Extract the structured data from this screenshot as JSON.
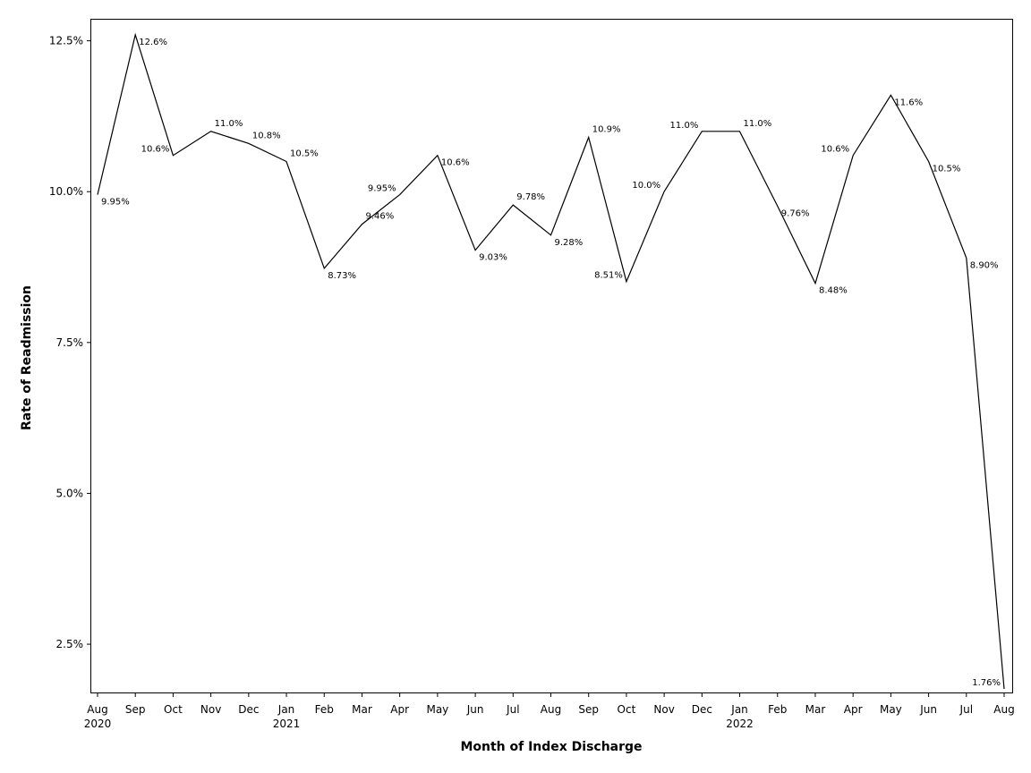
{
  "chart_data": {
    "type": "line",
    "xlabel": "Month of Index Discharge",
    "ylabel": "Rate of Readmission",
    "ylim": [
      1.7,
      12.85
    ],
    "yticks": [
      2.5,
      5.0,
      7.5,
      10.0,
      12.5
    ],
    "ytick_labels": [
      "2.5%",
      "5.0%",
      "7.5%",
      "10.0%",
      "12.5%"
    ],
    "grid": false,
    "categories": [
      {
        "month": "Aug",
        "year": "2020"
      },
      {
        "month": "Sep",
        "year": ""
      },
      {
        "month": "Oct",
        "year": ""
      },
      {
        "month": "Nov",
        "year": ""
      },
      {
        "month": "Dec",
        "year": ""
      },
      {
        "month": "Jan",
        "year": "2021"
      },
      {
        "month": "Feb",
        "year": ""
      },
      {
        "month": "Mar",
        "year": ""
      },
      {
        "month": "Apr",
        "year": ""
      },
      {
        "month": "May",
        "year": ""
      },
      {
        "month": "Jun",
        "year": ""
      },
      {
        "month": "Jul",
        "year": ""
      },
      {
        "month": "Aug",
        "year": ""
      },
      {
        "month": "Sep",
        "year": ""
      },
      {
        "month": "Oct",
        "year": ""
      },
      {
        "month": "Nov",
        "year": ""
      },
      {
        "month": "Dec",
        "year": ""
      },
      {
        "month": "Jan",
        "year": "2022"
      },
      {
        "month": "Feb",
        "year": ""
      },
      {
        "month": "Mar",
        "year": ""
      },
      {
        "month": "Apr",
        "year": ""
      },
      {
        "month": "May",
        "year": ""
      },
      {
        "month": "Jun",
        "year": ""
      },
      {
        "month": "Jul",
        "year": ""
      },
      {
        "month": "Aug",
        "year": ""
      }
    ],
    "series": [
      {
        "values": [
          9.95,
          12.6,
          10.6,
          11.0,
          10.8,
          10.5,
          8.73,
          9.46,
          9.95,
          10.6,
          9.03,
          9.78,
          9.28,
          10.9,
          8.51,
          10.0,
          11.0,
          11.0,
          9.76,
          8.48,
          10.6,
          11.6,
          10.5,
          8.9,
          1.76
        ],
        "labels": [
          "9.95%",
          "12.6%",
          "10.6%",
          "11.0%",
          "10.8%",
          "10.5%",
          "8.73%",
          "9.46%",
          "9.95%",
          "10.6%",
          "9.03%",
          "9.78%",
          "9.28%",
          "10.9%",
          "8.51%",
          "10.0%",
          "11.0%",
          "11.0%",
          "9.76%",
          "8.48%",
          "10.6%",
          "11.6%",
          "10.5%",
          "8.90%",
          "1.76%"
        ],
        "label_position": [
          "right",
          "right",
          "left",
          "above",
          "above",
          "above",
          "below",
          "above",
          "left",
          "right",
          "below",
          "above",
          "below",
          "above",
          "left",
          "left",
          "left",
          "above",
          "right",
          "right",
          "left",
          "right",
          "right",
          "right",
          "left"
        ],
        "color": "#000000"
      }
    ]
  }
}
